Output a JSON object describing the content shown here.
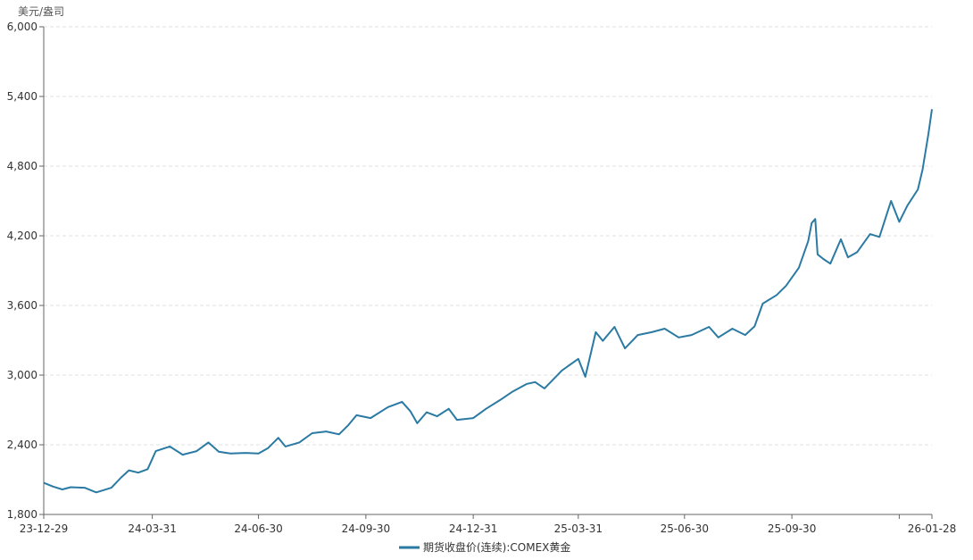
{
  "chart_data": {
    "type": "line",
    "ylabel": "美元/盎司",
    "ylim": [
      1800,
      6000
    ],
    "yticks": [
      1800,
      2400,
      3000,
      3600,
      4200,
      4800,
      5400,
      6000
    ],
    "ytick_labels": [
      "1,800",
      "2,400",
      "3,000",
      "3,600",
      "4,200",
      "4,800",
      "5,400",
      "6,000"
    ],
    "xlim": [
      "2023-12-29",
      "2026-01-28"
    ],
    "xticks": [
      {
        "date": "2023-12-29",
        "label": "23-12-29"
      },
      {
        "date": "2024-03-31",
        "label": "24-03-31"
      },
      {
        "date": "2024-06-30",
        "label": "24-06-30"
      },
      {
        "date": "2024-09-30",
        "label": "24-09-30"
      },
      {
        "date": "2024-12-31",
        "label": "24-12-31"
      },
      {
        "date": "2025-03-31",
        "label": "25-03-31"
      },
      {
        "date": "2025-06-30",
        "label": "25-06-30"
      },
      {
        "date": "2025-09-30",
        "label": "25-09-30"
      },
      {
        "date": "2025-12-31",
        "label": ""
      },
      {
        "date": "2026-01-28",
        "label": "26-01-28"
      }
    ],
    "grid": "horizontal dashed",
    "legend_placement": "bottom",
    "series": [
      {
        "name": "期货收盘价(连续):COMEX黄金",
        "color": "#2a7aa3",
        "points": [
          [
            "2023-12-29",
            2072
          ],
          [
            "2024-01-06",
            2040
          ],
          [
            "2024-01-14",
            2015
          ],
          [
            "2024-01-21",
            2035
          ],
          [
            "2024-02-02",
            2030
          ],
          [
            "2024-02-12",
            1990
          ],
          [
            "2024-02-25",
            2030
          ],
          [
            "2024-03-04",
            2115
          ],
          [
            "2024-03-11",
            2180
          ],
          [
            "2024-03-19",
            2160
          ],
          [
            "2024-03-27",
            2190
          ],
          [
            "2024-04-03",
            2345
          ],
          [
            "2024-04-15",
            2385
          ],
          [
            "2024-04-26",
            2315
          ],
          [
            "2024-05-08",
            2345
          ],
          [
            "2024-05-18",
            2420
          ],
          [
            "2024-05-27",
            2340
          ],
          [
            "2024-06-06",
            2325
          ],
          [
            "2024-06-19",
            2330
          ],
          [
            "2024-06-30",
            2325
          ],
          [
            "2024-07-08",
            2370
          ],
          [
            "2024-07-17",
            2460
          ],
          [
            "2024-07-23",
            2385
          ],
          [
            "2024-08-04",
            2420
          ],
          [
            "2024-08-15",
            2500
          ],
          [
            "2024-08-27",
            2515
          ],
          [
            "2024-09-07",
            2490
          ],
          [
            "2024-09-15",
            2570
          ],
          [
            "2024-09-22",
            2655
          ],
          [
            "2024-10-04",
            2630
          ],
          [
            "2024-10-19",
            2725
          ],
          [
            "2024-10-31",
            2770
          ],
          [
            "2024-11-07",
            2690
          ],
          [
            "2024-11-13",
            2585
          ],
          [
            "2024-11-21",
            2680
          ],
          [
            "2024-11-30",
            2645
          ],
          [
            "2024-12-10",
            2710
          ],
          [
            "2024-12-17",
            2615
          ],
          [
            "2024-12-31",
            2630
          ],
          [
            "2025-01-11",
            2710
          ],
          [
            "2025-01-23",
            2785
          ],
          [
            "2025-02-03",
            2860
          ],
          [
            "2025-02-15",
            2925
          ],
          [
            "2025-02-22",
            2940
          ],
          [
            "2025-03-02",
            2885
          ],
          [
            "2025-03-17",
            3040
          ],
          [
            "2025-03-31",
            3140
          ],
          [
            "2025-04-06",
            2985
          ],
          [
            "2025-04-15",
            3370
          ],
          [
            "2025-04-21",
            3295
          ],
          [
            "2025-05-01",
            3415
          ],
          [
            "2025-05-10",
            3230
          ],
          [
            "2025-05-21",
            3345
          ],
          [
            "2025-06-02",
            3370
          ],
          [
            "2025-06-13",
            3400
          ],
          [
            "2025-06-25",
            3325
          ],
          [
            "2025-07-06",
            3345
          ],
          [
            "2025-07-21",
            3415
          ],
          [
            "2025-07-29",
            3325
          ],
          [
            "2025-08-10",
            3400
          ],
          [
            "2025-08-21",
            3345
          ],
          [
            "2025-08-29",
            3420
          ],
          [
            "2025-09-05",
            3615
          ],
          [
            "2025-09-17",
            3690
          ],
          [
            "2025-09-25",
            3770
          ],
          [
            "2025-10-06",
            3925
          ],
          [
            "2025-10-14",
            4155
          ],
          [
            "2025-10-17",
            4310
          ],
          [
            "2025-10-20",
            4345
          ],
          [
            "2025-10-22",
            4040
          ],
          [
            "2025-10-27",
            4000
          ],
          [
            "2025-11-02",
            3960
          ],
          [
            "2025-11-11",
            4170
          ],
          [
            "2025-11-17",
            4015
          ],
          [
            "2025-11-25",
            4060
          ],
          [
            "2025-12-06",
            4215
          ],
          [
            "2025-12-14",
            4190
          ],
          [
            "2025-12-24",
            4500
          ],
          [
            "2025-12-31",
            4320
          ],
          [
            "2026-01-07",
            4460
          ],
          [
            "2026-01-16",
            4600
          ],
          [
            "2026-01-20",
            4770
          ],
          [
            "2026-01-25",
            5080
          ],
          [
            "2026-01-28",
            5290
          ]
        ]
      }
    ]
  }
}
